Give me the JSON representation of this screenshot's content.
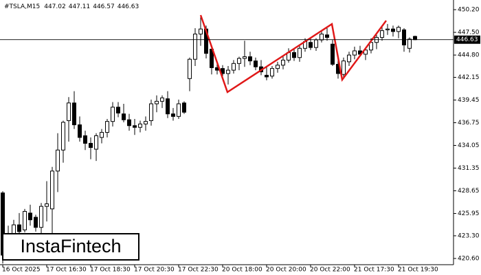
{
  "header": {
    "symbol": "#TSLA,M15"
  },
  "watermark": "InstaFintech",
  "chart_data": {
    "type": "candlestick",
    "categories": [
      "16 Oct 2025",
      null,
      null,
      null,
      null,
      null,
      null,
      null,
      "17 Oct 16:30",
      null,
      null,
      null,
      null,
      null,
      null,
      null,
      "17 Oct 18:30",
      null,
      null,
      null,
      null,
      null,
      null,
      null,
      "17 Oct 20:30",
      null,
      null,
      null,
      null,
      null,
      null,
      null,
      "17 Oct 22:30",
      null,
      null,
      null,
      null,
      null,
      null,
      null,
      "20 Oct 18:00",
      null,
      null,
      null,
      null,
      null,
      null,
      null,
      "20 Oct 20:00",
      null,
      null,
      null,
      null,
      null,
      null,
      null,
      "20 Oct 22:00",
      null,
      null,
      null,
      null,
      null,
      null,
      null,
      "21 Oct 17:30",
      null,
      null,
      null,
      null,
      null,
      null,
      null,
      "21 Oct 19:30",
      null,
      null,
      null
    ],
    "open": [
      428.4,
      423.5,
      423,
      424.6,
      424,
      426,
      425.5,
      424.3,
      426.8,
      426.5,
      431,
      433.5,
      437,
      439.1,
      436.5,
      435.2,
      434.3,
      433.6,
      435,
      435.6,
      436.9,
      438.6,
      437.8,
      437.1,
      436.4,
      436.2,
      436.6,
      437,
      439,
      439.3,
      439.6,
      437.8,
      437.5,
      439.1,
      442,
      444.3,
      447.3,
      447.9,
      445.5,
      443.3,
      443.2,
      442.6,
      443,
      443.8,
      444.4,
      444.6,
      444.1,
      443.4,
      442.4,
      442.3,
      443.2,
      443.6,
      444.2,
      445.1,
      444.5,
      445.6,
      446.3,
      445.7,
      446.6,
      447.2,
      446.1,
      443.7,
      442.5,
      444,
      444.8,
      445.3,
      444.9,
      445.4,
      446.3,
      446.9,
      447.8,
      447.9,
      447.6,
      447.8,
      445.6,
      447.02
    ],
    "high": [
      428.6,
      424.5,
      425.2,
      426,
      426.5,
      427,
      425.8,
      427.2,
      429.8,
      431.5,
      435.5,
      437,
      439.8,
      440.5,
      437.5,
      435.8,
      435,
      435.5,
      436,
      437.2,
      439.2,
      439.2,
      439,
      437.8,
      437.2,
      437,
      437.5,
      439.5,
      440,
      440,
      440.5,
      438.5,
      439.5,
      439.3,
      444.5,
      448,
      449.3,
      448.3,
      446,
      444,
      443.6,
      443.5,
      444.2,
      444.6,
      446.5,
      445.2,
      444.5,
      444.2,
      443.4,
      443.5,
      444,
      444.6,
      445.6,
      445.5,
      445.9,
      446.8,
      446.8,
      446.8,
      447.6,
      448,
      446.6,
      444.5,
      444.5,
      445.2,
      445.8,
      445.9,
      445.7,
      446.8,
      447.2,
      448.3,
      448.5,
      448.3,
      448.3,
      448,
      446.9,
      447.11
    ],
    "low": [
      420,
      421.5,
      422,
      423.5,
      423.7,
      424.5,
      423.8,
      423.2,
      425,
      422.5,
      428.5,
      432,
      434.5,
      436,
      434.5,
      433.5,
      432.4,
      432.2,
      434.3,
      435,
      436.3,
      437.4,
      436.8,
      435.8,
      435.3,
      435.6,
      435.8,
      436.4,
      438,
      438.5,
      437.3,
      437,
      437.2,
      437.8,
      440.5,
      443.5,
      445.9,
      444.4,
      442.5,
      442.5,
      442.3,
      441.3,
      442.6,
      443,
      443.4,
      443.6,
      443,
      442.4,
      441.8,
      442,
      442.7,
      443.1,
      443.9,
      444.1,
      444,
      445.2,
      445.4,
      445.3,
      446.3,
      446.5,
      443.5,
      442,
      442,
      443.5,
      444.3,
      444.6,
      444.2,
      445,
      445.5,
      446.5,
      447.2,
      447,
      446.8,
      445.2,
      445.1,
      446.57
    ],
    "close": [
      421,
      422.3,
      424.6,
      423.8,
      426.2,
      425.2,
      424.3,
      426.8,
      427.1,
      431,
      433.5,
      436.8,
      439.1,
      436.5,
      435,
      434.3,
      433.8,
      435.2,
      435.6,
      436.9,
      438.6,
      437.9,
      437.1,
      436.4,
      436.2,
      436.6,
      436.9,
      439,
      439.3,
      439.7,
      437.8,
      437.5,
      439,
      438,
      444.3,
      447.3,
      447.9,
      445,
      443.3,
      443,
      442.6,
      443,
      443.8,
      444.4,
      444.6,
      444.1,
      443.4,
      442.8,
      442.2,
      443.2,
      443.6,
      444.2,
      445.1,
      444.5,
      445.6,
      446.4,
      445.7,
      446.6,
      447.3,
      446.9,
      443.7,
      442.6,
      444.1,
      444.8,
      445.3,
      444.9,
      445.4,
      446.3,
      446.9,
      447.7,
      447.9,
      447.6,
      448.1,
      446,
      446.7,
      446.63
    ],
    "ylim": [
      419.86,
      451.35
    ],
    "yticks": [
      {
        "value": 450.2,
        "label": "450.20"
      },
      {
        "value": 447.5,
        "label": "447.50"
      },
      {
        "value": 444.8,
        "label": "444.80"
      },
      442.15,
      439.45,
      436.75,
      434.05,
      431.35,
      428.65,
      425.95,
      {
        "value": 423.3,
        "label": "423.30"
      },
      {
        "value": 420.6,
        "label": "420.60"
      }
    ],
    "bull_color": "#ffffff",
    "bear_color": "#000000",
    "line_color": "#000000"
  }
}
